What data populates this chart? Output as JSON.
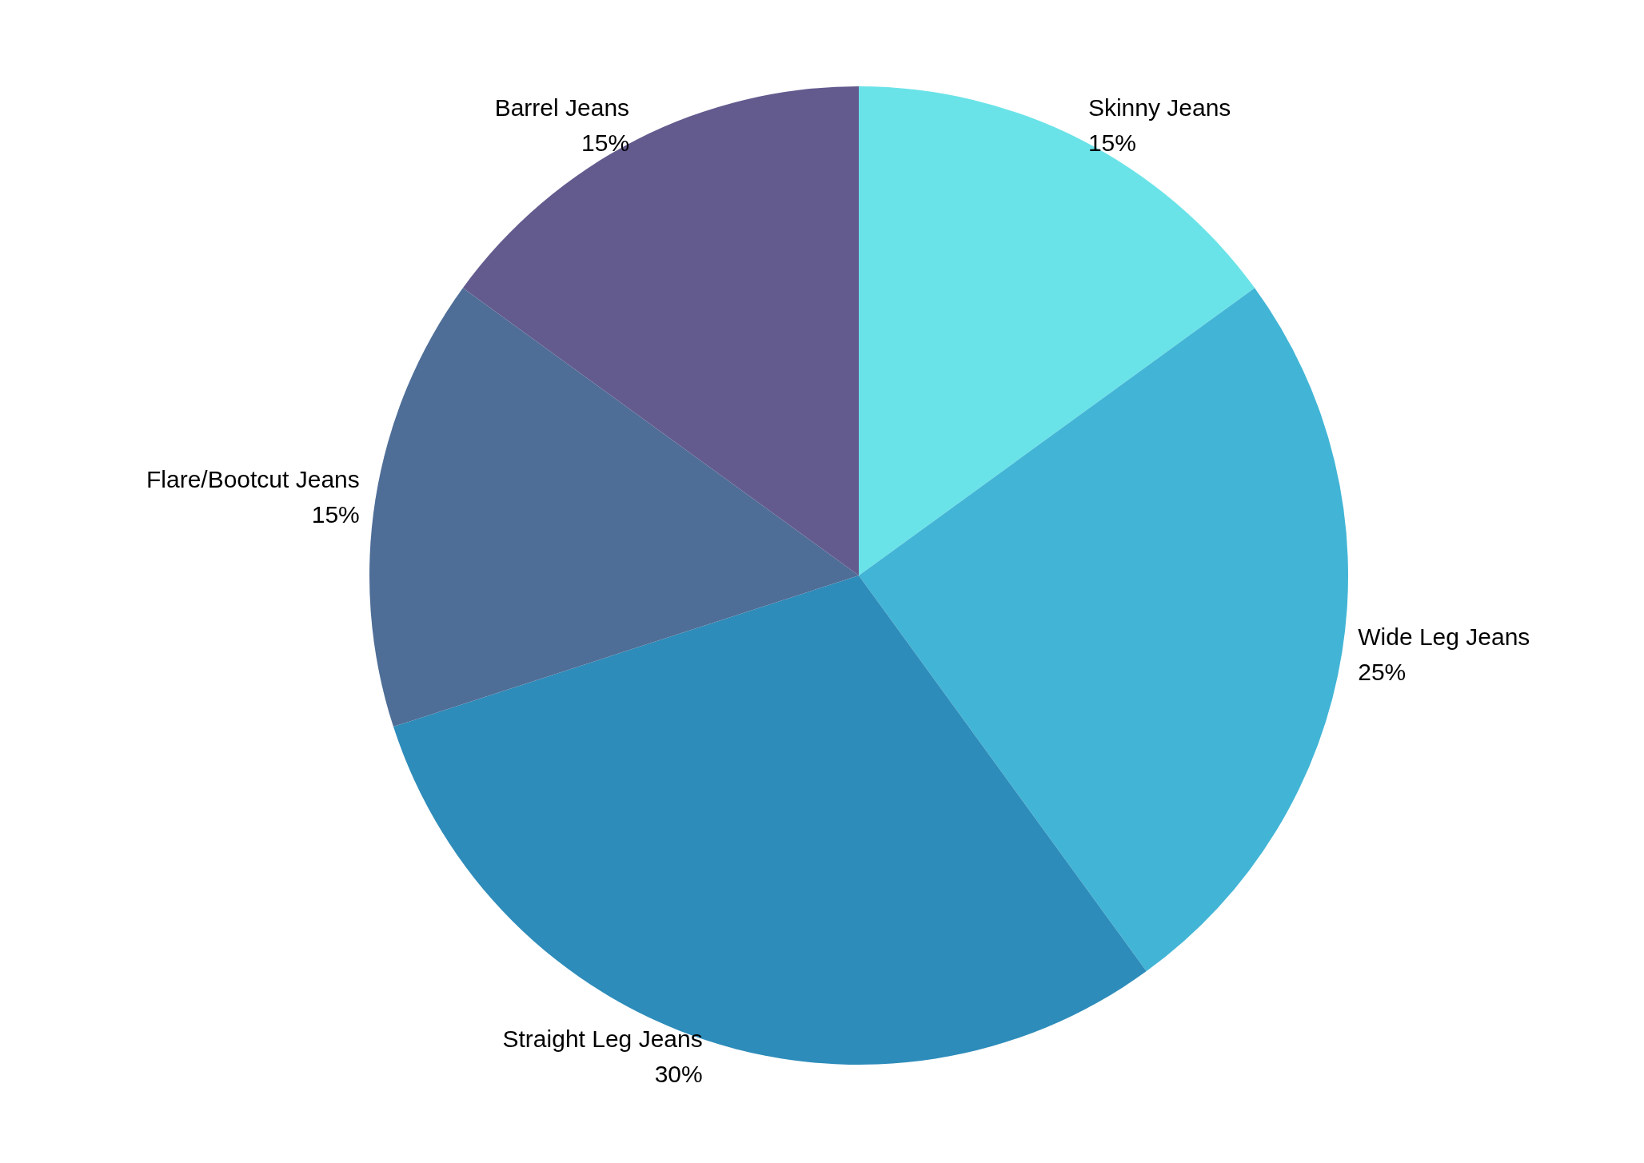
{
  "chart_data": {
    "type": "pie",
    "categories": [
      "Skinny Jeans",
      "Wide Leg Jeans",
      "Straight Leg Jeans",
      "Flare/Bootcut Jeans",
      "Barrel Jeans"
    ],
    "values": [
      15,
      25,
      30,
      15,
      15
    ],
    "colors": [
      "#6ae3e8",
      "#42b5d6",
      "#2d8cba",
      "#4e6e97",
      "#635b8e"
    ],
    "value_labels": [
      "15%",
      "25%",
      "30%",
      "15%",
      "15%"
    ],
    "legend": false
  }
}
